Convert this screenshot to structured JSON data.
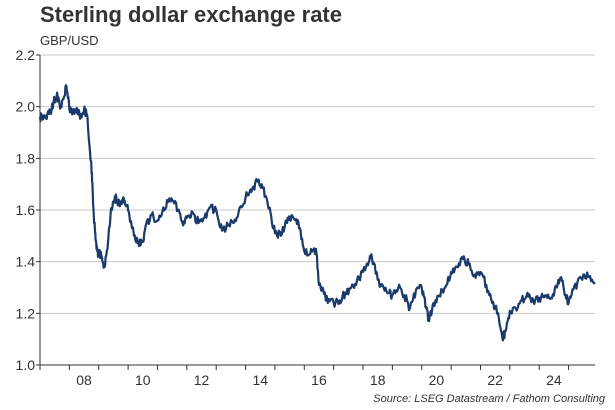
{
  "chart_data": {
    "type": "line",
    "title": "Sterling dollar exchange rate",
    "unit_label": "GBP/USD",
    "source": "Source: LSEG Datastream / Fathom Consulting",
    "xlabel": "",
    "ylabel": "",
    "x_ticks": [
      "08",
      "10",
      "12",
      "14",
      "16",
      "18",
      "20",
      "22",
      "24"
    ],
    "x_tick_years": [
      2008,
      2010,
      2012,
      2014,
      2016,
      2018,
      2020,
      2022,
      2024
    ],
    "xlim": [
      2007.0,
      2025.9
    ],
    "y_ticks": [
      "1.0",
      "1.2",
      "1.4",
      "1.6",
      "1.8",
      "2.0",
      "2.2"
    ],
    "ylim": [
      1.0,
      2.2
    ],
    "grid": "horizontal",
    "line_color": "#1a3a6b",
    "series": [
      {
        "name": "",
        "x": [
          2007.0,
          2007.1,
          2007.25,
          2007.4,
          2007.5,
          2007.6,
          2007.7,
          2007.8,
          2007.9,
          2008.0,
          2008.1,
          2008.2,
          2008.3,
          2008.4,
          2008.5,
          2008.6,
          2008.7,
          2008.75,
          2008.8,
          2008.85,
          2008.9,
          2008.95,
          2009.0,
          2009.1,
          2009.2,
          2009.3,
          2009.4,
          2009.5,
          2009.6,
          2009.7,
          2009.8,
          2009.9,
          2010.0,
          2010.2,
          2010.35,
          2010.5,
          2010.6,
          2010.8,
          2011.0,
          2011.2,
          2011.35,
          2011.5,
          2011.7,
          2011.85,
          2012.0,
          2012.2,
          2012.4,
          2012.6,
          2012.8,
          2013.0,
          2013.2,
          2013.4,
          2013.6,
          2013.8,
          2014.0,
          2014.2,
          2014.4,
          2014.55,
          2014.7,
          2014.85,
          2015.0,
          2015.2,
          2015.4,
          2015.5,
          2015.7,
          2015.85,
          2016.0,
          2016.2,
          2016.4,
          2016.5,
          2016.6,
          2016.8,
          2017.0,
          2017.2,
          2017.4,
          2017.6,
          2017.8,
          2018.0,
          2018.2,
          2018.3,
          2018.5,
          2018.7,
          2018.9,
          2019.0,
          2019.2,
          2019.4,
          2019.6,
          2019.8,
          2020.0,
          2020.15,
          2020.25,
          2020.4,
          2020.6,
          2020.8,
          2021.0,
          2021.2,
          2021.4,
          2021.6,
          2021.8,
          2022.0,
          2022.2,
          2022.4,
          2022.6,
          2022.75,
          2022.85,
          2023.0,
          2023.2,
          2023.4,
          2023.6,
          2023.8,
          2024.0,
          2024.2,
          2024.4,
          2024.6,
          2024.75,
          2024.9,
          2025.0,
          2025.1,
          2025.3,
          2025.5,
          2025.7,
          2025.9
        ],
        "values": [
          1.96,
          1.95,
          1.97,
          1.99,
          2.03,
          2.04,
          2.0,
          2.03,
          2.08,
          1.99,
          1.97,
          1.99,
          1.97,
          1.97,
          1.99,
          1.97,
          1.83,
          1.77,
          1.65,
          1.55,
          1.48,
          1.44,
          1.43,
          1.42,
          1.38,
          1.45,
          1.58,
          1.63,
          1.65,
          1.62,
          1.64,
          1.62,
          1.6,
          1.5,
          1.47,
          1.48,
          1.54,
          1.58,
          1.56,
          1.61,
          1.63,
          1.64,
          1.6,
          1.55,
          1.57,
          1.59,
          1.55,
          1.57,
          1.61,
          1.6,
          1.52,
          1.54,
          1.55,
          1.61,
          1.65,
          1.67,
          1.71,
          1.7,
          1.65,
          1.59,
          1.51,
          1.5,
          1.55,
          1.57,
          1.56,
          1.53,
          1.44,
          1.43,
          1.45,
          1.31,
          1.3,
          1.24,
          1.24,
          1.25,
          1.28,
          1.3,
          1.33,
          1.36,
          1.4,
          1.42,
          1.33,
          1.3,
          1.28,
          1.27,
          1.3,
          1.27,
          1.22,
          1.29,
          1.3,
          1.22,
          1.17,
          1.24,
          1.27,
          1.3,
          1.36,
          1.38,
          1.41,
          1.39,
          1.35,
          1.36,
          1.31,
          1.24,
          1.2,
          1.1,
          1.13,
          1.21,
          1.22,
          1.25,
          1.28,
          1.25,
          1.26,
          1.27,
          1.26,
          1.3,
          1.34,
          1.27,
          1.24,
          1.27,
          1.32,
          1.35,
          1.34,
          1.32
        ]
      }
    ]
  }
}
